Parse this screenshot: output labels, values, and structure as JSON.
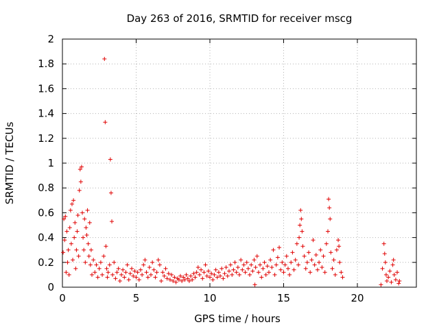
{
  "chart_data": {
    "type": "scatter",
    "title": "Day 263 of 2016, SRMTID for receiver mscg",
    "xlabel": "GPS time / hours",
    "ylabel": "SRMTID / TECUs",
    "xlim": [
      0,
      24
    ],
    "ylim": [
      0,
      2
    ],
    "xticks": [
      0,
      5,
      10,
      15,
      20
    ],
    "yticks": [
      0,
      0.2,
      0.4,
      0.6,
      0.8,
      1,
      1.2,
      1.4,
      1.6,
      1.8,
      2
    ],
    "xtick_labels": [
      "0",
      "5",
      "10",
      "15",
      "20"
    ],
    "ytick_labels": [
      "0",
      "0.2",
      "0.4",
      "0.6",
      "0.8",
      "1",
      "1.2",
      "1.4",
      "1.6",
      "1.8",
      "2"
    ],
    "grid": true,
    "marker": "+",
    "color": "#e00000",
    "series": [
      {
        "name": "SRMTID",
        "points": [
          [
            0.05,
            0.28
          ],
          [
            0.1,
            0.55
          ],
          [
            0.15,
            0.38
          ],
          [
            0.2,
            0.57
          ],
          [
            0.25,
            0.12
          ],
          [
            0.3,
            0.45
          ],
          [
            0.35,
            0.2
          ],
          [
            0.4,
            0.3
          ],
          [
            0.45,
            0.1
          ],
          [
            0.5,
            0.48
          ],
          [
            0.55,
            0.62
          ],
          [
            0.6,
            0.35
          ],
          [
            0.65,
            0.67
          ],
          [
            0.7,
            0.22
          ],
          [
            0.75,
            0.7
          ],
          [
            0.8,
            0.4
          ],
          [
            0.85,
            0.52
          ],
          [
            0.9,
            0.15
          ],
          [
            0.95,
            0.3
          ],
          [
            1.0,
            0.45
          ],
          [
            1.05,
            0.58
          ],
          [
            1.1,
            0.25
          ],
          [
            1.15,
            0.78
          ],
          [
            1.2,
            0.95
          ],
          [
            1.25,
            0.85
          ],
          [
            1.3,
            0.97
          ],
          [
            1.35,
            0.6
          ],
          [
            1.4,
            0.4
          ],
          [
            1.45,
            0.3
          ],
          [
            1.5,
            0.55
          ],
          [
            1.55,
            0.2
          ],
          [
            1.6,
            0.48
          ],
          [
            1.65,
            0.42
          ],
          [
            1.7,
            0.62
          ],
          [
            1.75,
            0.35
          ],
          [
            1.8,
            0.25
          ],
          [
            1.85,
            0.52
          ],
          [
            1.9,
            0.18
          ],
          [
            1.95,
            0.3
          ],
          [
            2.0,
            0.1
          ],
          [
            2.1,
            0.22
          ],
          [
            2.2,
            0.12
          ],
          [
            2.3,
            0.18
          ],
          [
            2.4,
            0.08
          ],
          [
            2.5,
            0.15
          ],
          [
            2.6,
            0.2
          ],
          [
            2.7,
            0.1
          ],
          [
            2.8,
            0.25
          ],
          [
            2.85,
            1.84
          ],
          [
            2.9,
            1.33
          ],
          [
            2.95,
            0.33
          ],
          [
            3.0,
            0.15
          ],
          [
            3.05,
            0.08
          ],
          [
            3.1,
            0.12
          ],
          [
            3.2,
            0.18
          ],
          [
            3.25,
            1.03
          ],
          [
            3.3,
            0.76
          ],
          [
            3.35,
            0.53
          ],
          [
            3.4,
            0.1
          ],
          [
            3.5,
            0.2
          ],
          [
            3.6,
            0.07
          ],
          [
            3.7,
            0.12
          ],
          [
            3.8,
            0.15
          ],
          [
            3.9,
            0.05
          ],
          [
            4.0,
            0.1
          ],
          [
            4.1,
            0.14
          ],
          [
            4.2,
            0.08
          ],
          [
            4.3,
            0.12
          ],
          [
            4.4,
            0.18
          ],
          [
            4.5,
            0.06
          ],
          [
            4.6,
            0.11
          ],
          [
            4.7,
            0.15
          ],
          [
            4.8,
            0.09
          ],
          [
            4.9,
            0.13
          ],
          [
            5.0,
            0.08
          ],
          [
            5.1,
            0.12
          ],
          [
            5.2,
            0.06
          ],
          [
            5.3,
            0.14
          ],
          [
            5.4,
            0.1
          ],
          [
            5.5,
            0.18
          ],
          [
            5.6,
            0.22
          ],
          [
            5.7,
            0.12
          ],
          [
            5.8,
            0.08
          ],
          [
            5.9,
            0.16
          ],
          [
            6.0,
            0.1
          ],
          [
            6.1,
            0.2
          ],
          [
            6.2,
            0.14
          ],
          [
            6.3,
            0.08
          ],
          [
            6.4,
            0.12
          ],
          [
            6.5,
            0.22
          ],
          [
            6.6,
            0.18
          ],
          [
            6.7,
            0.05
          ],
          [
            6.8,
            0.12
          ],
          [
            6.9,
            0.09
          ],
          [
            7.0,
            0.15
          ],
          [
            7.1,
            0.07
          ],
          [
            7.2,
            0.11
          ],
          [
            7.3,
            0.06
          ],
          [
            7.4,
            0.1
          ],
          [
            7.5,
            0.05
          ],
          [
            7.6,
            0.08
          ],
          [
            7.7,
            0.04
          ],
          [
            7.8,
            0.07
          ],
          [
            7.9,
            0.06
          ],
          [
            8.0,
            0.09
          ],
          [
            8.1,
            0.05
          ],
          [
            8.2,
            0.08
          ],
          [
            8.3,
            0.06
          ],
          [
            8.4,
            0.1
          ],
          [
            8.5,
            0.07
          ],
          [
            8.6,
            0.05
          ],
          [
            8.7,
            0.09
          ],
          [
            8.8,
            0.06
          ],
          [
            8.9,
            0.11
          ],
          [
            9.0,
            0.08
          ],
          [
            9.1,
            0.12
          ],
          [
            9.2,
            0.16
          ],
          [
            9.3,
            0.1
          ],
          [
            9.4,
            0.14
          ],
          [
            9.5,
            0.07
          ],
          [
            9.6,
            0.12
          ],
          [
            9.7,
            0.18
          ],
          [
            9.8,
            0.09
          ],
          [
            9.9,
            0.13
          ],
          [
            10.0,
            0.08
          ],
          [
            10.1,
            0.11
          ],
          [
            10.2,
            0.06
          ],
          [
            10.3,
            0.1
          ],
          [
            10.4,
            0.14
          ],
          [
            10.5,
            0.08
          ],
          [
            10.6,
            0.12
          ],
          [
            10.7,
            0.09
          ],
          [
            10.8,
            0.15
          ],
          [
            10.9,
            0.07
          ],
          [
            11.0,
            0.11
          ],
          [
            11.1,
            0.16
          ],
          [
            11.2,
            0.09
          ],
          [
            11.3,
            0.13
          ],
          [
            11.4,
            0.18
          ],
          [
            11.5,
            0.1
          ],
          [
            11.6,
            0.14
          ],
          [
            11.7,
            0.2
          ],
          [
            11.8,
            0.12
          ],
          [
            11.9,
            0.16
          ],
          [
            12.0,
            0.1
          ],
          [
            12.1,
            0.22
          ],
          [
            12.2,
            0.14
          ],
          [
            12.3,
            0.18
          ],
          [
            12.4,
            0.12
          ],
          [
            12.5,
            0.2
          ],
          [
            12.6,
            0.15
          ],
          [
            12.7,
            0.1
          ],
          [
            12.8,
            0.18
          ],
          [
            12.9,
            0.13
          ],
          [
            13.0,
            0.22
          ],
          [
            13.05,
            0.02
          ],
          [
            13.1,
            0.16
          ],
          [
            13.2,
            0.25
          ],
          [
            13.3,
            0.12
          ],
          [
            13.4,
            0.18
          ],
          [
            13.5,
            0.08
          ],
          [
            13.6,
            0.15
          ],
          [
            13.7,
            0.2
          ],
          [
            13.8,
            0.1
          ],
          [
            13.9,
            0.17
          ],
          [
            14.0,
            0.12
          ],
          [
            14.1,
            0.22
          ],
          [
            14.2,
            0.16
          ],
          [
            14.3,
            0.3
          ],
          [
            14.4,
            0.1
          ],
          [
            14.5,
            0.18
          ],
          [
            14.6,
            0.24
          ],
          [
            14.7,
            0.32
          ],
          [
            14.8,
            0.14
          ],
          [
            14.9,
            0.2
          ],
          [
            15.0,
            0.12
          ],
          [
            15.1,
            0.18
          ],
          [
            15.2,
            0.25
          ],
          [
            15.3,
            0.15
          ],
          [
            15.4,
            0.1
          ],
          [
            15.5,
            0.2
          ],
          [
            15.6,
            0.28
          ],
          [
            15.7,
            0.14
          ],
          [
            15.8,
            0.22
          ],
          [
            15.9,
            0.35
          ],
          [
            16.0,
            0.18
          ],
          [
            16.05,
            0.4
          ],
          [
            16.1,
            0.5
          ],
          [
            16.15,
            0.62
          ],
          [
            16.2,
            0.55
          ],
          [
            16.25,
            0.45
          ],
          [
            16.3,
            0.33
          ],
          [
            16.4,
            0.25
          ],
          [
            16.5,
            0.15
          ],
          [
            16.6,
            0.2
          ],
          [
            16.7,
            0.28
          ],
          [
            16.8,
            0.12
          ],
          [
            16.9,
            0.22
          ],
          [
            17.0,
            0.38
          ],
          [
            17.1,
            0.18
          ],
          [
            17.2,
            0.26
          ],
          [
            17.3,
            0.14
          ],
          [
            17.4,
            0.2
          ],
          [
            17.5,
            0.3
          ],
          [
            17.6,
            0.16
          ],
          [
            17.7,
            0.25
          ],
          [
            17.8,
            0.12
          ],
          [
            17.9,
            0.35
          ],
          [
            18.0,
            0.45
          ],
          [
            18.05,
            0.71
          ],
          [
            18.1,
            0.64
          ],
          [
            18.15,
            0.55
          ],
          [
            18.2,
            0.28
          ],
          [
            18.3,
            0.15
          ],
          [
            18.4,
            0.22
          ],
          [
            18.5,
            0.1
          ],
          [
            18.6,
            0.3
          ],
          [
            18.7,
            0.38
          ],
          [
            18.75,
            0.33
          ],
          [
            18.8,
            0.2
          ],
          [
            18.9,
            0.12
          ],
          [
            19.0,
            0.08
          ],
          [
            21.6,
            0.02
          ],
          [
            21.7,
            0.15
          ],
          [
            21.8,
            0.35
          ],
          [
            21.85,
            0.27
          ],
          [
            21.9,
            0.2
          ],
          [
            21.95,
            0.1
          ],
          [
            22.0,
            0.05
          ],
          [
            22.1,
            0.08
          ],
          [
            22.2,
            0.13
          ],
          [
            22.3,
            0.04
          ],
          [
            22.4,
            0.18
          ],
          [
            22.45,
            0.22
          ],
          [
            22.5,
            0.1
          ],
          [
            22.6,
            0.06
          ],
          [
            22.7,
            0.12
          ],
          [
            22.8,
            0.03
          ],
          [
            22.85,
            0.05
          ]
        ]
      }
    ]
  }
}
